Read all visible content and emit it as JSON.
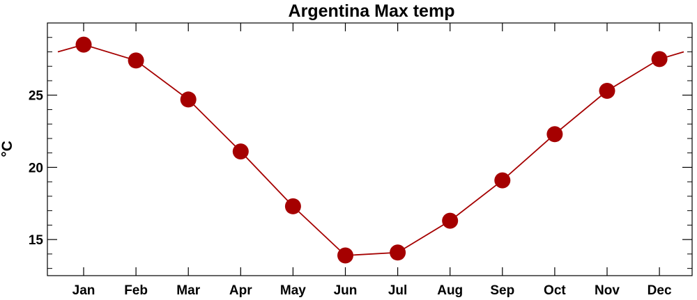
{
  "chart_data": {
    "type": "line",
    "title": "Argentina Max temp",
    "xlabel": "",
    "ylabel": "°C",
    "categories": [
      "Jan",
      "Feb",
      "Mar",
      "Apr",
      "May",
      "Jun",
      "Jul",
      "Aug",
      "Sep",
      "Oct",
      "Nov",
      "Dec"
    ],
    "series": [
      {
        "values": [
          28.5,
          27.4,
          24.7,
          21.1,
          17.3,
          13.9,
          14.1,
          16.3,
          19.1,
          22.3,
          25.3,
          27.5
        ]
      }
    ],
    "wrap_values": {
      "before_jan": 28.0,
      "after_dec": 28.0
    },
    "ylim": [
      12.5,
      30.0
    ],
    "yticks": [
      15,
      20,
      25
    ],
    "yminor_ticks": [
      13,
      14,
      16,
      17,
      18,
      19,
      21,
      22,
      23,
      24,
      26,
      27,
      28,
      29
    ],
    "grid": false,
    "colors": {
      "series": "#a50000",
      "line": "#a50000"
    }
  }
}
